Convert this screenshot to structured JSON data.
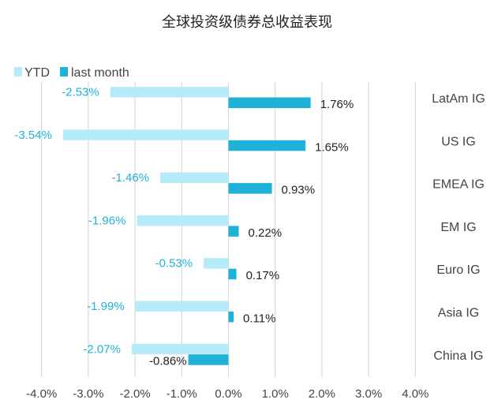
{
  "chart_data": {
    "type": "bar",
    "orientation": "horizontal",
    "title": "全球投资级债券总收益表现",
    "categories": [
      "LatAm IG",
      "US IG",
      "EMEA IG",
      "EM IG",
      "Euro IG",
      "Asia IG",
      "China IG"
    ],
    "series": [
      {
        "name": "YTD",
        "color": "#b6ecfa",
        "values": [
          -2.53,
          -3.54,
          -1.46,
          -1.96,
          -0.53,
          -1.99,
          -2.07
        ],
        "labels": [
          "-2.53%",
          "-3.54%",
          "-1.46%",
          "-1.96%",
          "-0.53%",
          "-1.99%",
          "-2.07%"
        ]
      },
      {
        "name": "last month",
        "color": "#1fb2d8",
        "values": [
          1.76,
          1.65,
          0.93,
          0.22,
          0.17,
          0.11,
          -0.86
        ],
        "labels": [
          "1.76%",
          "1.65%",
          "0.93%",
          "0.22%",
          "0.17%",
          "0.11%",
          "-0.86%"
        ]
      }
    ],
    "xlim": [
      -4.0,
      4.0
    ],
    "xticks": [
      -4,
      -3,
      -2,
      -1,
      0,
      1,
      2,
      3,
      4
    ],
    "xtick_labels": [
      "-4.0%",
      "-3.0%",
      "-2.0%",
      "-1.0%",
      "0.0%",
      "1.0%",
      "2.0%",
      "3.0%",
      "4.0%"
    ],
    "grid": "vertical",
    "legend_position": "top-left",
    "category_labels_position": "right"
  }
}
